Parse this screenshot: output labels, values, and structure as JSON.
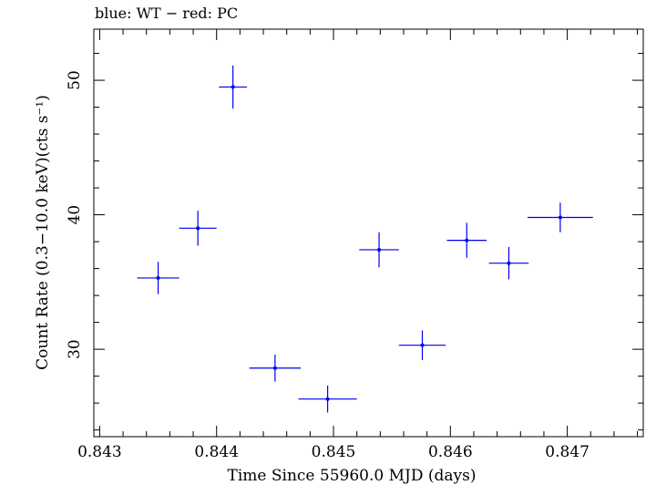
{
  "chart_data": {
    "type": "scatter",
    "title": "blue: WT − red: PC",
    "xlabel": "Time Since 55960.0 MJD (days)",
    "ylabel": "Count Rate (0.3−10.0 keV)(cts s⁻¹)",
    "xlim": [
      0.84295,
      0.84765
    ],
    "ylim": [
      23.5,
      53.8
    ],
    "x_ticks": [
      "0.843",
      "0.844",
      "0.845",
      "0.846",
      "0.847"
    ],
    "y_ticks": [
      "30",
      "40",
      "50"
    ],
    "grid": false,
    "series": [
      {
        "name": "WT",
        "color": "#0000ee",
        "points": [
          {
            "x": 0.8435,
            "y": 35.3,
            "xerr": 0.00018,
            "yerr": 1.2
          },
          {
            "x": 0.84384,
            "y": 39.0,
            "xerr": 0.00016,
            "yerr": 1.3
          },
          {
            "x": 0.84414,
            "y": 49.5,
            "xerr": 0.00012,
            "yerr": 1.6
          },
          {
            "x": 0.8445,
            "y": 28.6,
            "xerr": 0.00022,
            "yerr": 1.0
          },
          {
            "x": 0.84495,
            "y": 26.3,
            "xerr": 0.00025,
            "yerr": 1.0
          },
          {
            "x": 0.84539,
            "y": 37.4,
            "xerr": 0.00017,
            "yerr": 1.3
          },
          {
            "x": 0.84576,
            "y": 30.3,
            "xerr": 0.0002,
            "yerr": 1.1
          },
          {
            "x": 0.84614,
            "y": 38.1,
            "xerr": 0.00017,
            "yerr": 1.3
          },
          {
            "x": 0.8465,
            "y": 36.4,
            "xerr": 0.00017,
            "yerr": 1.2
          },
          {
            "x": 0.84694,
            "y": 39.8,
            "xerr": 0.00028,
            "yerr": 1.1
          }
        ]
      }
    ]
  }
}
